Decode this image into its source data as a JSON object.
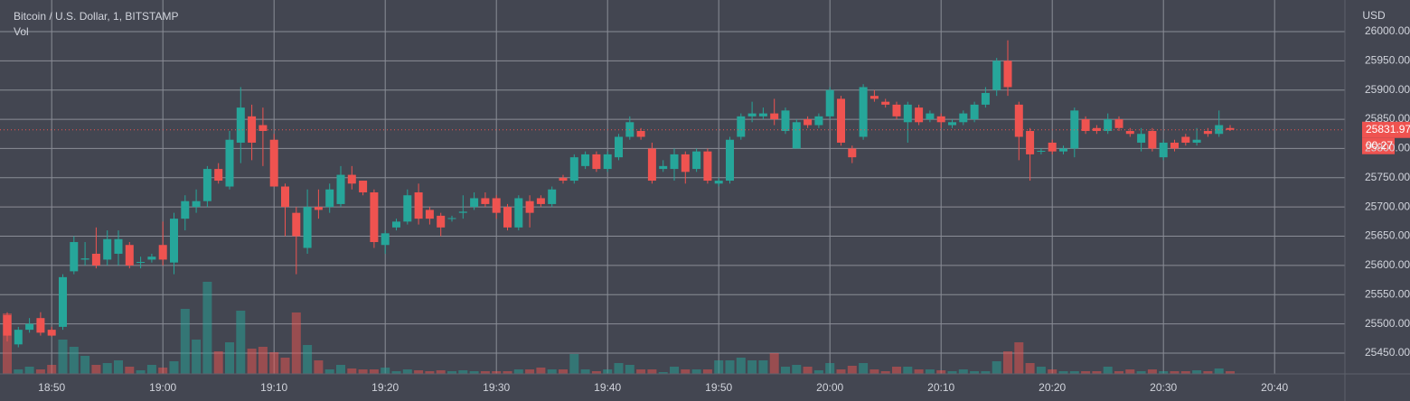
{
  "chart_data": {
    "type": "candlestick",
    "title": "Bitcoin / U.S. Dollar, 1, BITSTAMP",
    "volume_label": "Vol",
    "y_axis_label": "USD",
    "countdown": "00:27",
    "up_color": "#26a69a",
    "down_color": "#ef5350",
    "grid": true,
    "x": [
      "18:46",
      "18:47",
      "18:48",
      "18:49",
      "18:50",
      "18:51",
      "18:52",
      "18:53",
      "18:54",
      "18:55",
      "18:56",
      "18:57",
      "18:58",
      "18:59",
      "19:00",
      "19:01",
      "19:02",
      "19:03",
      "19:04",
      "19:05",
      "19:06",
      "19:07",
      "19:08",
      "19:09",
      "19:10",
      "19:11",
      "19:12",
      "19:13",
      "19:14",
      "19:15",
      "19:16",
      "19:17",
      "19:18",
      "19:19",
      "19:20",
      "19:21",
      "19:22",
      "19:23",
      "19:24",
      "19:25",
      "19:26",
      "19:27",
      "19:28",
      "19:29",
      "19:30",
      "19:31",
      "19:32",
      "19:33",
      "19:34",
      "19:35",
      "19:36",
      "19:37",
      "19:38",
      "19:39",
      "19:40",
      "19:41",
      "19:42",
      "19:43",
      "19:44",
      "19:45",
      "19:46",
      "19:47",
      "19:48",
      "19:49",
      "19:50",
      "19:51",
      "19:52",
      "19:53",
      "19:54",
      "19:55",
      "19:56",
      "19:57",
      "19:58",
      "19:59",
      "20:00",
      "20:01",
      "20:02",
      "20:03",
      "20:04",
      "20:05",
      "20:06",
      "20:07",
      "20:08",
      "20:09",
      "20:10",
      "20:11",
      "20:12",
      "20:13",
      "20:14",
      "20:15",
      "20:16",
      "20:17",
      "20:18",
      "20:19",
      "20:20",
      "20:21",
      "20:22",
      "20:23",
      "20:24",
      "20:25",
      "20:26",
      "20:27",
      "20:28",
      "20:29",
      "20:30",
      "20:31",
      "20:32",
      "20:33",
      "20:34",
      "20:35",
      "20:36"
    ],
    "open": [
      25515,
      25465,
      25490,
      25510,
      25490,
      25495,
      25590,
      25610,
      25620,
      25610,
      25620,
      25635,
      25605,
      25610,
      25635,
      25605,
      25680,
      25700,
      25710,
      25765,
      25735,
      25810,
      25855,
      25840,
      25815,
      25735,
      25690,
      25630,
      25700,
      25700,
      25705,
      25755,
      25745,
      25725,
      25635,
      25665,
      25675,
      25725,
      25695,
      25685,
      25680,
      25690,
      25700,
      25715,
      25715,
      25700,
      25665,
      25710,
      25715,
      25705,
      25750,
      25745,
      25770,
      25790,
      25765,
      25785,
      25820,
      25830,
      25800,
      25765,
      25765,
      25790,
      25765,
      25795,
      25740,
      25745,
      25820,
      25855,
      25855,
      25860,
      25830,
      25800,
      25850,
      25840,
      25855,
      25885,
      25800,
      25820,
      25890,
      25880,
      25875,
      25845,
      25870,
      25850,
      25855,
      25840,
      25845,
      25850,
      25875,
      25900,
      25950,
      25875,
      25830,
      25795,
      25810,
      25795,
      25800,
      25850,
      25835,
      25830,
      25850,
      25830,
      25810,
      25830,
      25785,
      25810,
      25820,
      25810,
      25830,
      25825,
      25835
    ],
    "high": [
      25520,
      25495,
      25510,
      25520,
      25495,
      25585,
      25650,
      25640,
      25665,
      25660,
      25660,
      25640,
      25615,
      25620,
      25675,
      25690,
      25720,
      25730,
      25770,
      25775,
      25830,
      25905,
      25875,
      25870,
      25825,
      25740,
      25700,
      25730,
      25730,
      25740,
      25770,
      25770,
      25745,
      25730,
      25660,
      25680,
      25730,
      25740,
      25700,
      25690,
      25685,
      25720,
      25725,
      25725,
      25720,
      25705,
      25720,
      25720,
      25720,
      25735,
      25755,
      25790,
      25795,
      25795,
      25795,
      25825,
      25855,
      25835,
      25810,
      25780,
      25800,
      25795,
      25800,
      25800,
      25750,
      25820,
      25860,
      25880,
      25870,
      25885,
      25870,
      25850,
      25855,
      25860,
      25905,
      25890,
      25805,
      25910,
      25900,
      25885,
      25880,
      25880,
      25875,
      25865,
      25860,
      25850,
      25865,
      25880,
      25905,
      25955,
      25985,
      25880,
      25835,
      25800,
      25815,
      25805,
      25870,
      25855,
      25840,
      25860,
      25855,
      25835,
      25835,
      25835,
      25815,
      25815,
      25825,
      25835,
      25835,
      25865,
      25840
    ],
    "low": [
      25470,
      25460,
      25485,
      25480,
      25478,
      25490,
      25585,
      25600,
      25595,
      25600,
      25600,
      25595,
      25595,
      25605,
      25600,
      25585,
      25660,
      25690,
      25700,
      25740,
      25730,
      25775,
      25780,
      25770,
      25735,
      25650,
      25585,
      25620,
      25680,
      25690,
      25700,
      25730,
      25720,
      25630,
      25620,
      25660,
      25670,
      25670,
      25670,
      25650,
      25675,
      25680,
      25695,
      25700,
      25680,
      25660,
      25660,
      25665,
      25700,
      25700,
      25740,
      25740,
      25765,
      25760,
      25760,
      25780,
      25815,
      25815,
      25740,
      25760,
      25745,
      25740,
      25760,
      25740,
      25735,
      25740,
      25815,
      25845,
      25850,
      25840,
      25825,
      25800,
      25835,
      25835,
      25850,
      25805,
      25775,
      25815,
      25880,
      25870,
      25850,
      25810,
      25840,
      25845,
      25835,
      25835,
      25840,
      25845,
      25870,
      25890,
      25890,
      25780,
      25745,
      25790,
      25790,
      25790,
      25785,
      25825,
      25825,
      25825,
      25830,
      25820,
      25795,
      25795,
      25780,
      25795,
      25805,
      25805,
      25820,
      25820,
      25830
    ],
    "close": [
      25480,
      25490,
      25500,
      25485,
      25480,
      25580,
      25640,
      25612,
      25600,
      25645,
      25645,
      25600,
      25606,
      25615,
      25610,
      25680,
      25710,
      25710,
      25765,
      25745,
      25815,
      25870,
      25810,
      25830,
      25735,
      25700,
      25650,
      25700,
      25695,
      25730,
      25755,
      25740,
      25725,
      25640,
      25655,
      25675,
      25720,
      25680,
      25680,
      25665,
      25681,
      25692,
      25715,
      25705,
      25690,
      25665,
      25715,
      25690,
      25705,
      25730,
      25745,
      25785,
      25790,
      25765,
      25790,
      25820,
      25845,
      25820,
      25745,
      25770,
      25790,
      25760,
      25795,
      25745,
      25745,
      25815,
      25855,
      25860,
      25860,
      25850,
      25865,
      25845,
      25840,
      25855,
      25900,
      25810,
      25785,
      25905,
      25885,
      25875,
      25855,
      25875,
      25845,
      25860,
      25845,
      25845,
      25860,
      25875,
      25895,
      25950,
      25905,
      25820,
      25790,
      25796,
      25795,
      25800,
      25865,
      25830,
      25830,
      25850,
      25835,
      25825,
      25825,
      25800,
      25810,
      25800,
      25810,
      25815,
      25825,
      25840,
      25831.97
    ],
    "volume": [
      67,
      5,
      8,
      5,
      10,
      38,
      30,
      20,
      10,
      12,
      15,
      8,
      4,
      10,
      7,
      14,
      72,
      38,
      102,
      25,
      35,
      70,
      28,
      30,
      24,
      18,
      68,
      32,
      15,
      5,
      10,
      6,
      5,
      5,
      7,
      3,
      5,
      4,
      3,
      4,
      3,
      4,
      3,
      3,
      3,
      3,
      5,
      5,
      7,
      5,
      5,
      22,
      5,
      3,
      5,
      12,
      10,
      5,
      5,
      2,
      8,
      5,
      5,
      5,
      15,
      15,
      18,
      15,
      15,
      23,
      8,
      10,
      8,
      4,
      12,
      5,
      9,
      12,
      5,
      3,
      8,
      8,
      5,
      5,
      4,
      3,
      5,
      3,
      3,
      14,
      25,
      35,
      12,
      8,
      5,
      3,
      3,
      3,
      3,
      8,
      3,
      5,
      3,
      5,
      3,
      3,
      3,
      4,
      3,
      6,
      3
    ],
    "vlim": [
      0,
      414
    ],
    "xticks": [
      "18:50",
      "19:00",
      "19:10",
      "19:20",
      "19:30",
      "19:40",
      "19:50",
      "20:00",
      "20:10",
      "20:20",
      "20:30",
      "20:40"
    ],
    "ylim": [
      25414.5,
      26054
    ],
    "yticks": [
      {
        "value": 25450,
        "label": "25450.00"
      },
      {
        "value": 25500,
        "label": "25500.00"
      },
      {
        "value": 25550,
        "label": "25550.00"
      },
      {
        "value": 25600,
        "label": "25600.00"
      },
      {
        "value": 25650,
        "label": "25650.00"
      },
      {
        "value": 25700,
        "label": "25700.00"
      },
      {
        "value": 25750,
        "label": "25750.00"
      },
      {
        "value": 25800,
        "label": "25800.00"
      },
      {
        "value": 25850,
        "label": "25850.00"
      },
      {
        "value": 25900,
        "label": "25900.00"
      },
      {
        "value": 25950,
        "label": "25950.00"
      },
      {
        "value": 26000,
        "label": "26000.00"
      }
    ]
  }
}
